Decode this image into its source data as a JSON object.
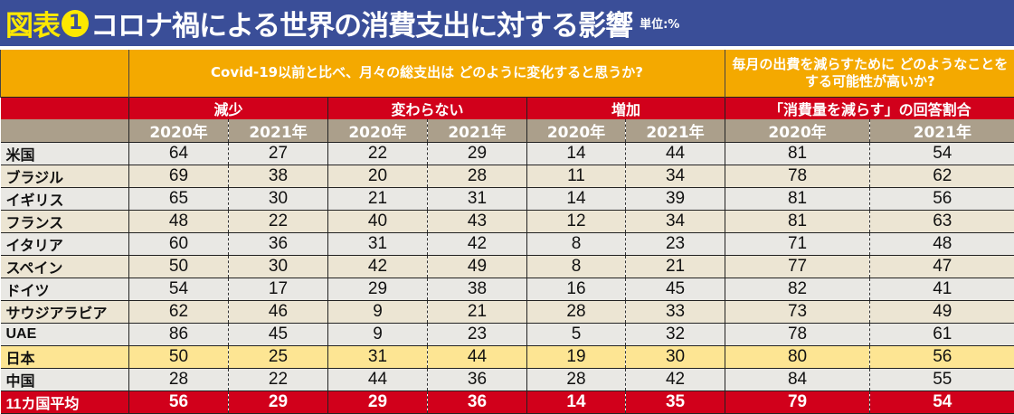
{
  "title": {
    "tag": "図表",
    "number": "1",
    "text": "コロナ禍による世界の消費支出に対する影響",
    "unit": "単位:%"
  },
  "headers": {
    "q1": "Covid-19以前と比べ、月々の総支出は どのように変化すると思うか?",
    "q2": "毎月の出費を減らすために どのようなことをする可能性が高いか?",
    "cat": [
      "減少",
      "変わらない",
      "増加",
      "「消費量を減らす」の回答割合"
    ],
    "years": [
      "2020年",
      "2021年",
      "2020年",
      "2021年",
      "2020年",
      "2021年",
      "2020年",
      "2021年"
    ]
  },
  "colors": {
    "title_bg": "#3a4e98",
    "header_orange": "#f4a900",
    "header_red": "#d1001b",
    "year_bg": "#ab9f8b",
    "japan_row": "#fde593"
  },
  "rows": [
    {
      "label": "米国",
      "v": [
        64,
        27,
        22,
        29,
        14,
        44,
        81,
        54
      ]
    },
    {
      "label": "ブラジル",
      "v": [
        69,
        38,
        20,
        28,
        11,
        34,
        78,
        62
      ]
    },
    {
      "label": "イギリス",
      "v": [
        65,
        30,
        21,
        31,
        14,
        39,
        81,
        56
      ]
    },
    {
      "label": "フランス",
      "v": [
        48,
        22,
        40,
        43,
        12,
        34,
        81,
        63
      ]
    },
    {
      "label": "イタリア",
      "v": [
        60,
        36,
        31,
        42,
        8,
        23,
        71,
        48
      ]
    },
    {
      "label": "スペイン",
      "v": [
        50,
        30,
        42,
        49,
        8,
        21,
        77,
        47
      ]
    },
    {
      "label": "ドイツ",
      "v": [
        54,
        17,
        29,
        38,
        16,
        45,
        82,
        41
      ]
    },
    {
      "label": "サウジアラビア",
      "v": [
        62,
        46,
        9,
        21,
        28,
        33,
        73,
        49
      ]
    },
    {
      "label": "UAE",
      "v": [
        86,
        45,
        9,
        23,
        5,
        32,
        78,
        61
      ]
    },
    {
      "label": "日本",
      "v": [
        50,
        25,
        31,
        44,
        19,
        30,
        80,
        56
      ]
    },
    {
      "label": "中国",
      "v": [
        28,
        22,
        44,
        36,
        28,
        42,
        84,
        55
      ]
    },
    {
      "label": "11カ国平均",
      "v": [
        56,
        29,
        29,
        36,
        14,
        35,
        79,
        54
      ]
    }
  ]
}
